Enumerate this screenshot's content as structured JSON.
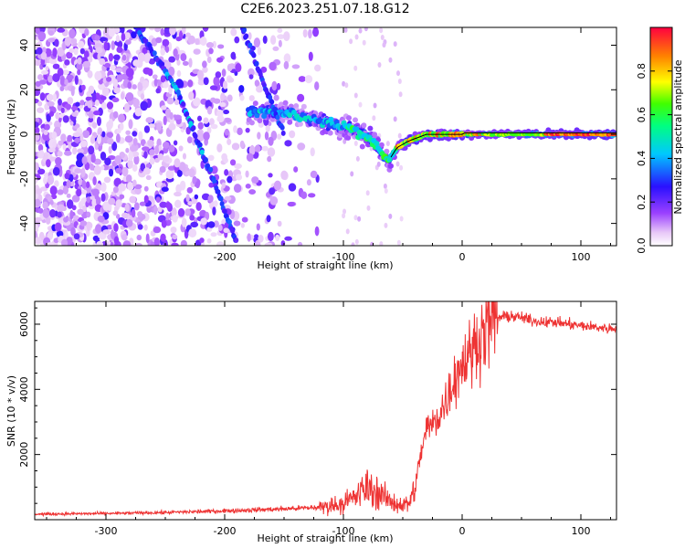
{
  "title": "C2E6.2023.251.07.18.G12",
  "chart_data": [
    {
      "type": "heatmap",
      "xlabel": "Height of straight line (km)",
      "ylabel": "Frequency (Hz)",
      "xlim": [
        -360,
        130
      ],
      "ylim": [
        -50,
        48
      ],
      "x_ticks": [
        -300,
        -200,
        -100,
        0,
        100
      ],
      "y_ticks": [
        -40,
        -20,
        0,
        20,
        40
      ],
      "colorbar": {
        "label": "Normalized spectral amplitude",
        "range": [
          0,
          1
        ],
        "ticks": [
          0.0,
          0.2,
          0.4,
          0.6,
          0.8
        ],
        "stops": [
          "#ffffff",
          "#e8c8f8",
          "#9a40ff",
          "#2a10ff",
          "#00c8ff",
          "#00ff80",
          "#40ff00",
          "#ffff00",
          "#ff8000",
          "#ff0040"
        ]
      },
      "features": [
        {
          "label": "main ridge",
          "points": [
            [
              -180,
              10
            ],
            [
              -150,
              10
            ],
            [
              -120,
              6
            ],
            [
              -90,
              2
            ],
            [
              -75,
              -3
            ],
            [
              -62,
              -12
            ],
            [
              -55,
              -6
            ],
            [
              -45,
              -3
            ],
            [
              -30,
              0
            ],
            [
              -10,
              0
            ],
            [
              0,
              0
            ],
            [
              50,
              0
            ],
            [
              130,
              0
            ]
          ]
        },
        {
          "label": "diagonal streak A",
          "points": [
            [
              -275,
              48
            ],
            [
              -240,
              20
            ],
            [
              -210,
              -20
            ],
            [
              -190,
              -48
            ]
          ]
        },
        {
          "label": "diagonal streak B",
          "points": [
            [
              -185,
              48
            ],
            [
              -165,
              20
            ],
            [
              -150,
              0
            ]
          ]
        }
      ]
    },
    {
      "type": "line",
      "xlabel": "Height of straight line (km)",
      "ylabel": "SNR (10 * v/v)",
      "xlim": [
        -360,
        130
      ],
      "ylim": [
        0,
        6700
      ],
      "x_ticks": [
        -300,
        -200,
        -100,
        0,
        100
      ],
      "y_ticks": [
        2000,
        4000,
        6000
      ],
      "color": "#ee3333",
      "series": [
        {
          "x": [
            -360,
            -300,
            -250,
            -200,
            -150,
            -120,
            -100,
            -90,
            -80,
            -70,
            -60,
            -50,
            -45,
            -40,
            -35,
            -30,
            -25,
            -20,
            -15,
            -10,
            -5,
            0,
            5,
            10,
            15,
            20,
            25,
            30,
            40,
            50,
            60,
            80,
            100,
            130
          ],
          "values": [
            170,
            190,
            220,
            270,
            330,
            380,
            500,
            700,
            1000,
            800,
            550,
            450,
            500,
            900,
            2000,
            2800,
            2900,
            3200,
            3500,
            4000,
            4500,
            4800,
            5000,
            5300,
            5600,
            5900,
            6100,
            6200,
            6250,
            6200,
            6100,
            6050,
            5950,
            5850
          ]
        }
      ]
    }
  ]
}
